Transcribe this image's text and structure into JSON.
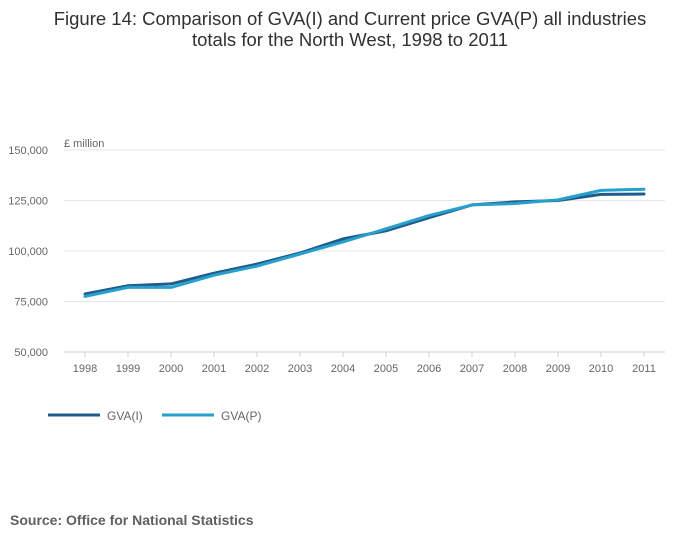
{
  "title_line1": "Figure 14: Comparison of GVA(I) and Current price GVA(P) all industries",
  "title_line2": "totals for the North West, 1998 to 2011",
  "source": "Source: Office for National Statistics",
  "colors": {
    "gva_i": "#1f5c8b",
    "gva_p": "#27a0cc",
    "grid": "#e6e6e6",
    "axis": "#cfcfcf",
    "tick_text": "#666666"
  },
  "chart_data": {
    "type": "line",
    "ylabel": "£ million",
    "ylim": [
      50000,
      150000
    ],
    "yticks": [
      50000,
      75000,
      100000,
      125000,
      150000
    ],
    "ytick_labels": [
      "50,000",
      "75,000",
      "100,000",
      "125,000",
      "150,000"
    ],
    "categories": [
      "1998",
      "1999",
      "2000",
      "2001",
      "2002",
      "2003",
      "2004",
      "2005",
      "2006",
      "2007",
      "2008",
      "2009",
      "2010",
      "2011"
    ],
    "grid": true,
    "legend_position": "bottom-left",
    "series": [
      {
        "name": "GVA(I)",
        "color": "#1f5c8b",
        "values": [
          78700,
          82800,
          83700,
          89000,
          93500,
          99000,
          106000,
          110000,
          116500,
          122800,
          124300,
          125000,
          128000,
          128200
        ]
      },
      {
        "name": "GVA(P)",
        "color": "#27a0cc",
        "values": [
          77500,
          82000,
          82000,
          88000,
          92500,
          98500,
          104500,
          111000,
          117500,
          122800,
          123500,
          125300,
          130000,
          130600
        ]
      }
    ]
  }
}
